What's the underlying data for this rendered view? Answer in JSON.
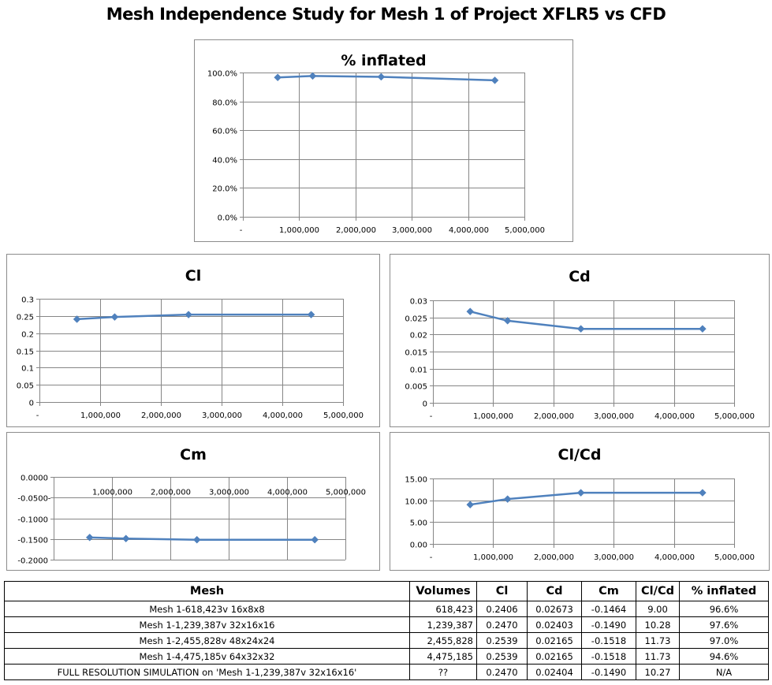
{
  "page_title": "Mesh Independence Study for Mesh 1 of Project XFLR5 vs CFD",
  "colors": {
    "series": "#4f81bd",
    "grid": "#868686",
    "border": "#8c8c8c"
  },
  "chart_data": [
    {
      "id": "inflated",
      "type": "line",
      "title": "% inflated",
      "x": [
        618423,
        1239387,
        2455828,
        4475185
      ],
      "values": [
        0.966,
        0.976,
        0.97,
        0.946
      ],
      "ylim": [
        0,
        1
      ],
      "yticks": [
        0,
        0.2,
        0.4,
        0.6,
        0.8,
        1.0
      ],
      "ytick_labels": [
        "0.0%",
        "20.0%",
        "40.0%",
        "60.0%",
        "80.0%",
        "100.0%"
      ],
      "xlim": [
        0,
        5000000
      ],
      "xticks": [
        0,
        1000000,
        2000000,
        3000000,
        4000000,
        5000000
      ],
      "xtick_labels": [
        "-",
        "1,000,000",
        "2,000,000",
        "3,000,000",
        "4,000,000",
        "5,000,000"
      ],
      "grid": true,
      "legend": "none",
      "marker": "diamond"
    },
    {
      "id": "cl",
      "type": "line",
      "title": "Cl",
      "x": [
        618423,
        1239387,
        2455828,
        4475185
      ],
      "values": [
        0.2406,
        0.247,
        0.2539,
        0.2539
      ],
      "ylim": [
        0,
        0.3
      ],
      "yticks": [
        0,
        0.05,
        0.1,
        0.15,
        0.2,
        0.25,
        0.3
      ],
      "ytick_labels": [
        "0",
        "0.05",
        "0.1",
        "0.15",
        "0.2",
        "0.25",
        "0.3"
      ],
      "xlim": [
        0,
        5000000
      ],
      "xticks": [
        0,
        1000000,
        2000000,
        3000000,
        4000000,
        5000000
      ],
      "xtick_labels": [
        "-",
        "1,000,000",
        "2,000,000",
        "3,000,000",
        "4,000,000",
        "5,000,000"
      ],
      "grid": true,
      "legend": "none",
      "marker": "diamond"
    },
    {
      "id": "cd",
      "type": "line",
      "title": "Cd",
      "x": [
        618423,
        1239387,
        2455828,
        4475185
      ],
      "values": [
        0.02673,
        0.02403,
        0.02165,
        0.02165
      ],
      "ylim": [
        0,
        0.03
      ],
      "yticks": [
        0,
        0.005,
        0.01,
        0.015,
        0.02,
        0.025,
        0.03
      ],
      "ytick_labels": [
        "0",
        "0.005",
        "0.01",
        "0.015",
        "0.02",
        "0.025",
        "0.03"
      ],
      "xlim": [
        0,
        5000000
      ],
      "xticks": [
        0,
        1000000,
        2000000,
        3000000,
        4000000,
        5000000
      ],
      "xtick_labels": [
        "-",
        "1,000,000",
        "2,000,000",
        "3,000,000",
        "4,000,000",
        "5,000,000"
      ],
      "grid": true,
      "legend": "none",
      "marker": "diamond"
    },
    {
      "id": "cm",
      "type": "line",
      "title": "Cm",
      "x": [
        618423,
        1239387,
        2455828,
        4475185
      ],
      "values": [
        -0.1464,
        -0.149,
        -0.1518,
        -0.1518
      ],
      "ylim": [
        -0.2,
        0
      ],
      "yticks": [
        -0.2,
        -0.15,
        -0.1,
        -0.05,
        0
      ],
      "ytick_labels": [
        "-0.2000",
        "-0.1500",
        "-0.1000",
        "-0.0500",
        "0.0000"
      ],
      "xlim": [
        0,
        5000000
      ],
      "xticks": [
        0,
        1000000,
        2000000,
        3000000,
        4000000,
        5000000
      ],
      "xtick_labels": [
        "-",
        "1,000,000",
        "2,000,000",
        "3,000,000",
        "4,000,000",
        "5,000,000"
      ],
      "xaxis_position": "top",
      "grid": true,
      "legend": "none",
      "marker": "diamond"
    },
    {
      "id": "clcd",
      "type": "line",
      "title": "Cl/Cd",
      "x": [
        618423,
        1239387,
        2455828,
        4475185
      ],
      "values": [
        9.0,
        10.28,
        11.73,
        11.73
      ],
      "ylim": [
        0,
        15
      ],
      "yticks": [
        0,
        5,
        10,
        15
      ],
      "ytick_labels": [
        "0.00",
        "5.00",
        "10.00",
        "15.00"
      ],
      "xlim": [
        0,
        5000000
      ],
      "xticks": [
        0,
        1000000,
        2000000,
        3000000,
        4000000,
        5000000
      ],
      "xtick_labels": [
        "-",
        "1,000,000",
        "2,000,000",
        "3,000,000",
        "4,000,000",
        "5,000,000"
      ],
      "grid": true,
      "legend": "none",
      "marker": "diamond"
    }
  ],
  "table": {
    "headers": [
      "Mesh",
      "Volumes",
      "Cl",
      "Cd",
      "Cm",
      "Cl/Cd",
      "% inflated"
    ],
    "rows": [
      [
        "Mesh 1-618,423v 16x8x8",
        "618,423",
        "0.2406",
        "0.02673",
        "-0.1464",
        "9.00",
        "96.6%"
      ],
      [
        "Mesh 1-1,239,387v 32x16x16",
        "1,239,387",
        "0.2470",
        "0.02403",
        "-0.1490",
        "10.28",
        "97.6%"
      ],
      [
        "Mesh 1-2,455,828v 48x24x24",
        "2,455,828",
        "0.2539",
        "0.02165",
        "-0.1518",
        "11.73",
        "97.0%"
      ],
      [
        "Mesh 1-4,475,185v 64x32x32",
        "4,475,185",
        "0.2539",
        "0.02165",
        "-0.1518",
        "11.73",
        "94.6%"
      ],
      [
        "FULL RESOLUTION SIMULATION on 'Mesh 1-1,239,387v 32x16x16'",
        "??",
        "0.2470",
        "0.02404",
        "-0.1490",
        "10.27",
        "N/A"
      ]
    ]
  }
}
